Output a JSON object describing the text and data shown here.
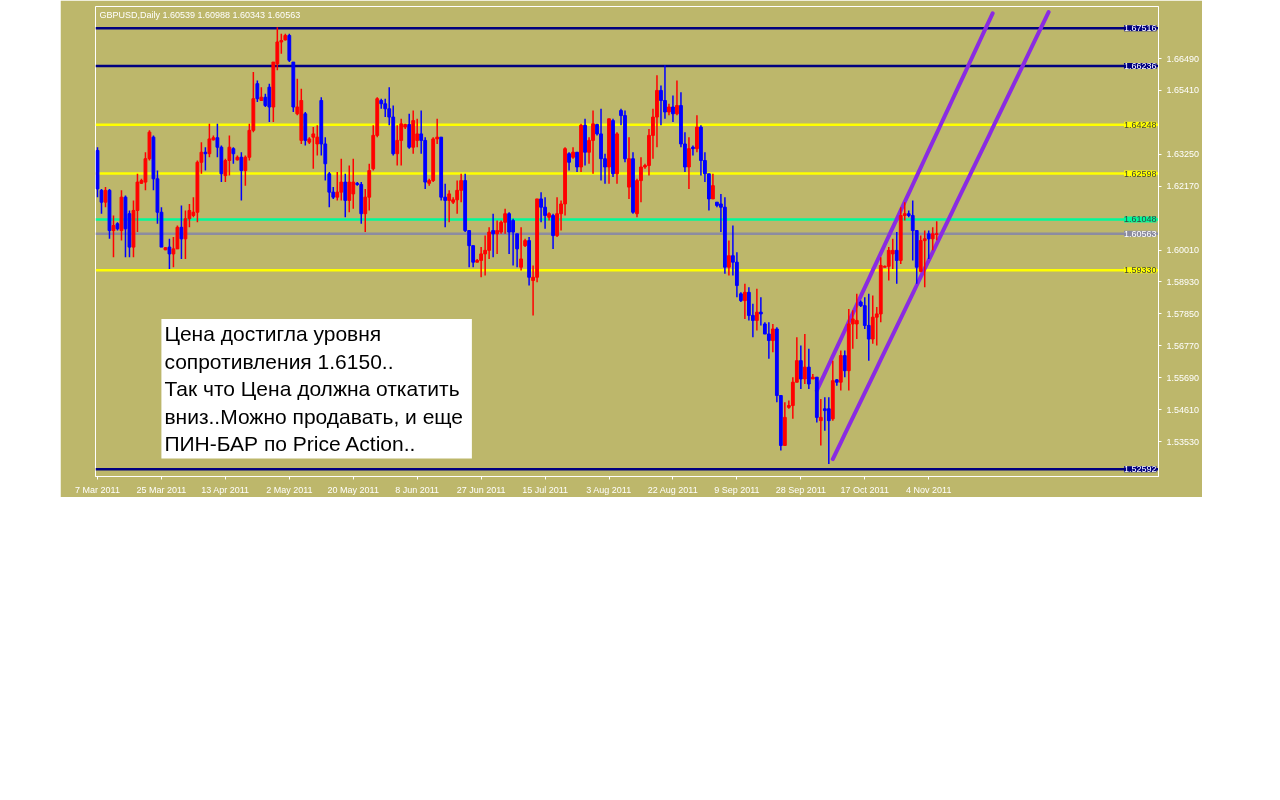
{
  "chart_data": {
    "type": "candlestick",
    "title": "GBPUSD,Daily  1.60539 1.60988 1.60343 1.60563",
    "categories": [
      "7 Mar 2011",
      null,
      null,
      null,
      null,
      null,
      null,
      null,
      null,
      null,
      null,
      null,
      null,
      null,
      null,
      null,
      "25 Mar 2011",
      null,
      null,
      null,
      null,
      null,
      null,
      null,
      null,
      null,
      null,
      null,
      null,
      null,
      null,
      null,
      "13 Apr 2011",
      null,
      null,
      null,
      null,
      null,
      null,
      null,
      null,
      null,
      null,
      null,
      null,
      null,
      null,
      null,
      "2 May 2011",
      null,
      null,
      null,
      null,
      null,
      null,
      null,
      null,
      null,
      null,
      null,
      null,
      null,
      null,
      null,
      "20 May 2011",
      null,
      null,
      null,
      null,
      null,
      null,
      null,
      null,
      null,
      null,
      null,
      null,
      null,
      null,
      null,
      "8 Jun 2011",
      null,
      null,
      null,
      null,
      null,
      null,
      null,
      null,
      null,
      null,
      null,
      null,
      null,
      null,
      null,
      "27 Jun 2011",
      null,
      null,
      null,
      null,
      null,
      null,
      null,
      null,
      null,
      null,
      null,
      null,
      null,
      null,
      null,
      "15 Jul 2011",
      null,
      null,
      null,
      null,
      null,
      null,
      null,
      null,
      null,
      null,
      null,
      null,
      null,
      null,
      null,
      "3 Aug 2011",
      null,
      null,
      null,
      null,
      null,
      null,
      null,
      null,
      null,
      null,
      null,
      null,
      null,
      null,
      null,
      "22 Aug 2011",
      null,
      null,
      null,
      null,
      null,
      null,
      null,
      null,
      null,
      null,
      null,
      null,
      null,
      null,
      null,
      "9 Sep 2011",
      null,
      null,
      null,
      null,
      null,
      null,
      null,
      null,
      null,
      null,
      null,
      null,
      null,
      null,
      null,
      "28 Sep 2011",
      null,
      null,
      null,
      null,
      null,
      null,
      null,
      null,
      null,
      null,
      null,
      null,
      null,
      null,
      null,
      "17 Oct 2011",
      null,
      null,
      null,
      null,
      null,
      null,
      null,
      null,
      null,
      null,
      null,
      null,
      null,
      null,
      null,
      "4 Nov 2011",
      null,
      null,
      null,
      null,
      null,
      null,
      null,
      null,
      null,
      null,
      null,
      null,
      null,
      null,
      null,
      null,
      null,
      null,
      null,
      null,
      null,
      null,
      null,
      null,
      null,
      null,
      null,
      null,
      null,
      null,
      null,
      null,
      null,
      null,
      null,
      null,
      null,
      null,
      null,
      null,
      null,
      null,
      null,
      null,
      null,
      null,
      null,
      null,
      null,
      null,
      null,
      null,
      null,
      null,
      null,
      null,
      null
    ],
    "ohlc": [
      [
        1.6338,
        1.6349,
        1.618,
        1.6208
      ],
      [
        1.6203,
        1.6208,
        1.6124,
        1.6163
      ],
      [
        1.6163,
        1.6214,
        1.6146,
        1.6203
      ],
      [
        1.6203,
        1.6208,
        1.6039,
        1.6067
      ],
      [
        1.6067,
        1.6118,
        1.5977,
        1.6084
      ],
      [
        1.609,
        1.6095,
        1.6067,
        1.6073
      ],
      [
        1.6067,
        1.6203,
        1.6033,
        1.618
      ],
      [
        1.618,
        1.6186,
        1.5977,
        1.6073
      ],
      [
        1.6124,
        1.6135,
        1.5977,
        1.6011
      ],
      [
        1.6011,
        1.6169,
        1.5977,
        1.6135
      ],
      [
        1.6135,
        1.6259,
        1.6062,
        1.6231
      ],
      [
        1.6227,
        1.6242,
        1.6225,
        1.6236
      ],
      [
        1.6231,
        1.6332,
        1.6203,
        1.631
      ],
      [
        1.631,
        1.6406,
        1.6304,
        1.64
      ],
      [
        1.6383,
        1.6389,
        1.6203,
        1.6242
      ],
      [
        1.6242,
        1.627,
        1.609,
        1.6129
      ],
      [
        1.6129,
        1.6146,
        1.6011,
        1.6011
      ],
      [
        1.6002,
        1.6011,
        1.6,
        1.6009
      ],
      [
        1.6011,
        1.6039,
        1.5937,
        1.5988
      ],
      [
        1.5988,
        1.6045,
        1.5943,
        1.6005
      ],
      [
        1.6005,
        1.6084,
        1.6005,
        1.6078
      ],
      [
        1.6078,
        1.6152,
        1.5971,
        1.6039
      ],
      [
        1.6039,
        1.6135,
        1.5971,
        1.6107
      ],
      [
        1.6107,
        1.6157,
        1.6078,
        1.6135
      ],
      [
        1.6118,
        1.618,
        1.6112,
        1.6129
      ],
      [
        1.6129,
        1.6304,
        1.6095,
        1.6298
      ],
      [
        1.6298,
        1.6366,
        1.6259,
        1.6332
      ],
      [
        1.6332,
        1.6349,
        1.627,
        1.6327
      ],
      [
        1.6327,
        1.6428,
        1.6315,
        1.6377
      ],
      [
        1.6374,
        1.6389,
        1.6372,
        1.6381
      ],
      [
        1.6381,
        1.6428,
        1.6315,
        1.6349
      ],
      [
        1.6349,
        1.6355,
        1.6231,
        1.6259
      ],
      [
        1.6253,
        1.631,
        1.6231,
        1.6304
      ],
      [
        1.6304,
        1.6389,
        1.6253,
        1.6349
      ],
      [
        1.6344,
        1.6349,
        1.6293,
        1.6327
      ],
      [
        1.6306,
        1.6321,
        1.6304,
        1.6315
      ],
      [
        1.6315,
        1.6332,
        1.6169,
        1.627
      ],
      [
        1.627,
        1.6321,
        1.6219,
        1.6315
      ],
      [
        1.6315,
        1.6428,
        1.6304,
        1.6406
      ],
      [
        1.6406,
        1.6603,
        1.64,
        1.6513
      ],
      [
        1.6564,
        1.6575,
        1.6502,
        1.6513
      ],
      [
        1.6507,
        1.6552,
        1.6507,
        1.6518
      ],
      [
        1.6518,
        1.653,
        1.6485,
        1.649
      ],
      [
        1.6552,
        1.6564,
        1.6434,
        1.6485
      ],
      [
        1.6485,
        1.6637,
        1.6434,
        1.6637
      ],
      [
        1.6631,
        1.6755,
        1.6609,
        1.6705
      ],
      [
        1.6705,
        1.6733,
        1.6665,
        1.671
      ],
      [
        1.6712,
        1.6733,
        1.671,
        1.6727
      ],
      [
        1.6727,
        1.6733,
        1.6637,
        1.6643
      ],
      [
        1.6637,
        1.6637,
        1.6468,
        1.6485
      ],
      [
        1.6462,
        1.6581,
        1.6457,
        1.6485
      ],
      [
        1.6372,
        1.6547,
        1.636,
        1.6507
      ],
      [
        1.6462,
        1.6468,
        1.6355,
        1.6372
      ],
      [
        1.6366,
        1.6383,
        1.636,
        1.6377
      ],
      [
        1.6383,
        1.6417,
        1.6276,
        1.6394
      ],
      [
        1.636,
        1.6423,
        1.6321,
        1.6383
      ],
      [
        1.6507,
        1.6518,
        1.6321,
        1.636
      ],
      [
        1.636,
        1.6383,
        1.6236,
        1.6293
      ],
      [
        1.6259,
        1.6265,
        1.6146,
        1.6197
      ],
      [
        1.6197,
        1.6214,
        1.6174,
        1.618
      ],
      [
        1.618,
        1.6265,
        1.6169,
        1.6197
      ],
      [
        1.6197,
        1.631,
        1.6169,
        1.6231
      ],
      [
        1.6231,
        1.6259,
        1.6112,
        1.6169
      ],
      [
        1.6169,
        1.6287,
        1.6129,
        1.6231
      ],
      [
        1.6191,
        1.631,
        1.6141,
        1.6231
      ],
      [
        1.6227,
        1.6231,
        1.6219,
        1.6223
      ],
      [
        1.6223,
        1.6231,
        1.609,
        1.6124
      ],
      [
        1.6124,
        1.6208,
        1.6062,
        1.618
      ],
      [
        1.618,
        1.6293,
        1.6135,
        1.627
      ],
      [
        1.6276,
        1.6423,
        1.627,
        1.6389
      ],
      [
        1.6389,
        1.6518,
        1.6383,
        1.6513
      ],
      [
        1.6507,
        1.6513,
        1.6479,
        1.6496
      ],
      [
        1.6496,
        1.6513,
        1.6451,
        1.6479
      ],
      [
        1.6479,
        1.6552,
        1.6423,
        1.6451
      ],
      [
        1.6451,
        1.649,
        1.6321,
        1.6327
      ],
      [
        1.6327,
        1.6423,
        1.6287,
        1.6372
      ],
      [
        1.6372,
        1.6445,
        1.6287,
        1.6428
      ],
      [
        1.6417,
        1.6428,
        1.6411,
        1.6426
      ],
      [
        1.6426,
        1.6462,
        1.6344,
        1.6349
      ],
      [
        1.6349,
        1.6473,
        1.6327,
        1.6439
      ],
      [
        1.6372,
        1.6445,
        1.6349,
        1.6394
      ],
      [
        1.6394,
        1.6473,
        1.6327,
        1.6372
      ],
      [
        1.6372,
        1.6383,
        1.6208,
        1.6231
      ],
      [
        1.6227,
        1.6242,
        1.6219,
        1.6236
      ],
      [
        1.6236,
        1.6383,
        1.6231,
        1.6377
      ],
      [
        1.6377,
        1.6445,
        1.636,
        1.6383
      ],
      [
        1.6383,
        1.6383,
        1.6169,
        1.618
      ],
      [
        1.618,
        1.6225,
        1.6078,
        1.6169
      ],
      [
        1.6169,
        1.6203,
        1.6095,
        1.6191
      ],
      [
        1.6163,
        1.618,
        1.6157,
        1.6171
      ],
      [
        1.6171,
        1.6236,
        1.6124,
        1.6203
      ],
      [
        1.6203,
        1.6259,
        1.6163,
        1.6236
      ],
      [
        1.6236,
        1.6259,
        1.6062,
        1.6067
      ],
      [
        1.6067,
        1.6067,
        1.5943,
        1.6016
      ],
      [
        1.6016,
        1.6016,
        1.5943,
        1.596
      ],
      [
        1.596,
        1.5971,
        1.596,
        1.5966
      ],
      [
        1.5966,
        1.6011,
        1.5909,
        1.5988
      ],
      [
        1.5988,
        1.605,
        1.5915,
        1.6
      ],
      [
        1.6,
        1.6078,
        1.5971,
        1.6062
      ],
      [
        1.6067,
        1.6124,
        1.5977,
        1.6056
      ],
      [
        1.6056,
        1.6101,
        1.5988,
        1.6067
      ],
      [
        1.6062,
        1.6101,
        1.6056,
        1.6095
      ],
      [
        1.6095,
        1.6141,
        1.6056,
        1.6124
      ],
      [
        1.6124,
        1.6129,
        1.5988,
        1.6062
      ],
      [
        1.6101,
        1.6107,
        1.5949,
        1.6062
      ],
      [
        1.6056,
        1.6056,
        1.5943,
        1.6005
      ],
      [
        1.5943,
        1.6078,
        1.5932,
        1.5971
      ],
      [
        1.6016,
        1.6039,
        1.6011,
        1.6033
      ],
      [
        1.6033,
        1.6045,
        1.5881,
        1.5909
      ],
      [
        1.5898,
        1.5949,
        1.578,
        1.5909
      ],
      [
        1.5909,
        1.6174,
        1.5892,
        1.6174
      ],
      [
        1.6174,
        1.6197,
        1.6095,
        1.6146
      ],
      [
        1.6146,
        1.618,
        1.6073,
        1.6118
      ],
      [
        1.6112,
        1.6129,
        1.6101,
        1.6124
      ],
      [
        1.6118,
        1.6124,
        1.6005,
        1.605
      ],
      [
        1.605,
        1.618,
        1.6045,
        1.6124
      ],
      [
        1.6124,
        1.6169,
        1.6067,
        1.6157
      ],
      [
        1.6157,
        1.6349,
        1.6118,
        1.6344
      ],
      [
        1.6327,
        1.6332,
        1.627,
        1.6298
      ],
      [
        1.6315,
        1.6349,
        1.631,
        1.6332
      ],
      [
        1.6332,
        1.6332,
        1.6265,
        1.6282
      ],
      [
        1.6282,
        1.6428,
        1.6265,
        1.6423
      ],
      [
        1.6423,
        1.6445,
        1.6287,
        1.6332
      ],
      [
        1.6332,
        1.6383,
        1.6293,
        1.6372
      ],
      [
        1.6372,
        1.6473,
        1.6259,
        1.6428
      ],
      [
        1.6426,
        1.6428,
        1.6389,
        1.6394
      ],
      [
        1.6394,
        1.6479,
        1.6236,
        1.631
      ],
      [
        1.631,
        1.6327,
        1.6225,
        1.6282
      ],
      [
        1.6282,
        1.6445,
        1.6225,
        1.6445
      ],
      [
        1.6439,
        1.6445,
        1.6248,
        1.6259
      ],
      [
        1.6259,
        1.64,
        1.6225,
        1.6394
      ],
      [
        1.6473,
        1.6479,
        1.6423,
        1.6456
      ],
      [
        1.6456,
        1.6473,
        1.6298,
        1.631
      ],
      [
        1.6214,
        1.6383,
        1.6174,
        1.631
      ],
      [
        1.631,
        1.6332,
        1.6124,
        1.6129
      ],
      [
        1.6124,
        1.6242,
        1.6112,
        1.6236
      ],
      [
        1.6236,
        1.6315,
        1.6163,
        1.6282
      ],
      [
        1.6282,
        1.6293,
        1.6276,
        1.6287
      ],
      [
        1.6287,
        1.6411,
        1.6253,
        1.6389
      ],
      [
        1.6389,
        1.6479,
        1.631,
        1.6451
      ],
      [
        1.6451,
        1.6592,
        1.6349,
        1.6541
      ],
      [
        1.6541,
        1.6558,
        1.6423,
        1.6507
      ],
      [
        1.6507,
        1.6626,
        1.6445,
        1.6468
      ],
      [
        1.6468,
        1.6496,
        1.6457,
        1.6485
      ],
      [
        1.6485,
        1.6524,
        1.6434,
        1.6462
      ],
      [
        1.6462,
        1.6575,
        1.6457,
        1.649
      ],
      [
        1.649,
        1.6535,
        1.6349,
        1.636
      ],
      [
        1.636,
        1.64,
        1.6265,
        1.6282
      ],
      [
        1.6282,
        1.6383,
        1.6208,
        1.6344
      ],
      [
        1.6349,
        1.6355,
        1.6321,
        1.6344
      ],
      [
        1.6344,
        1.6457,
        1.6332,
        1.6417
      ],
      [
        1.6417,
        1.6423,
        1.6253,
        1.6304
      ],
      [
        1.6304,
        1.6332,
        1.6231,
        1.6259
      ],
      [
        1.6259,
        1.6259,
        1.6135,
        1.6174
      ],
      [
        1.6174,
        1.6259,
        1.6174,
        1.6219
      ],
      [
        1.6163,
        1.6163,
        1.6146,
        1.6152
      ],
      [
        1.6157,
        1.6191,
        1.6062,
        1.6146
      ],
      [
        1.6146,
        1.618,
        1.5921,
        1.5943
      ],
      [
        1.5943,
        1.6033,
        1.5915,
        1.5982
      ],
      [
        1.5982,
        1.6084,
        1.5915,
        1.596
      ],
      [
        1.596,
        1.5994,
        1.5841,
        1.5881
      ],
      [
        1.5853,
        1.5858,
        1.5825,
        1.583
      ],
      [
        1.583,
        1.5887,
        1.5768,
        1.5858
      ],
      [
        1.5858,
        1.5875,
        1.5763,
        1.578
      ],
      [
        1.578,
        1.5819,
        1.5706,
        1.5763
      ],
      [
        1.5763,
        1.587,
        1.5729,
        1.5791
      ],
      [
        1.5791,
        1.5841,
        1.5746,
        1.5785
      ],
      [
        1.5751,
        1.5757,
        1.5717,
        1.5717
      ],
      [
        1.5717,
        1.5757,
        1.5633,
        1.5695
      ],
      [
        1.5695,
        1.5751,
        1.5655,
        1.5734
      ],
      [
        1.5734,
        1.574,
        1.5486,
        1.5509
      ],
      [
        1.5509,
        1.5509,
        1.5323,
        1.534
      ],
      [
        1.534,
        1.5486,
        1.534,
        1.5435
      ],
      [
        1.5469,
        1.5492,
        1.5464,
        1.5475
      ],
      [
        1.5475,
        1.5571,
        1.543,
        1.5554
      ],
      [
        1.5554,
        1.5706,
        1.5554,
        1.5627
      ],
      [
        1.5627,
        1.5678,
        1.5531,
        1.5565
      ],
      [
        1.5565,
        1.5717,
        1.5548,
        1.5605
      ],
      [
        1.5605,
        1.5667,
        1.5531,
        1.5548
      ],
      [
        1.5565,
        1.5582,
        1.5565,
        1.5571
      ],
      [
        1.5571,
        1.5571,
        1.5418,
        1.5435
      ],
      [
        1.5424,
        1.5497,
        1.534,
        1.5435
      ],
      [
        1.5464,
        1.5503,
        1.539,
        1.5458
      ],
      [
        1.5464,
        1.5503,
        1.5277,
        1.5424
      ],
      [
        1.543,
        1.5627,
        1.5424,
        1.5559
      ],
      [
        1.5562,
        1.5565,
        1.5542,
        1.5554
      ],
      [
        1.5554,
        1.5661,
        1.5526,
        1.5644
      ],
      [
        1.5644,
        1.5661,
        1.5571,
        1.5593
      ],
      [
        1.5593,
        1.5802,
        1.5526,
        1.5751
      ],
      [
        1.5751,
        1.5797,
        1.5667,
        1.5768
      ],
      [
        1.5751,
        1.5853,
        1.57,
        1.5763
      ],
      [
        1.5825,
        1.583,
        1.5808,
        1.5813
      ],
      [
        1.5813,
        1.5841,
        1.5734,
        1.5746
      ],
      [
        1.5746,
        1.5853,
        1.5627,
        1.57
      ],
      [
        1.57,
        1.5847,
        1.5684,
        1.5774
      ],
      [
        1.5774,
        1.5808,
        1.5678,
        1.5785
      ],
      [
        1.5785,
        1.5977,
        1.5757,
        1.5949
      ],
      [
        1.5943,
        1.5949,
        1.5943,
        1.5946
      ],
      [
        1.5946,
        1.6011,
        1.5898,
        1.6
      ],
      [
        1.5988,
        1.6039,
        1.5937,
        1.6
      ],
      [
        1.6,
        1.6062,
        1.5887,
        1.5966
      ],
      [
        1.5966,
        1.6146,
        1.5954,
        1.6118
      ],
      [
        1.6118,
        1.6163,
        1.6101,
        1.6124
      ],
      [
        1.6124,
        1.6135,
        1.6112,
        1.6118
      ],
      [
        1.6118,
        1.6169,
        1.5966,
        1.6067
      ],
      [
        1.6067,
        1.6067,
        1.5887,
        1.5943
      ],
      [
        1.5929,
        1.605,
        1.5926,
        1.6033
      ],
      [
        1.6033,
        1.6067,
        1.5875,
        1.6039
      ],
      [
        1.6056,
        1.6067,
        1.5971,
        1.6039
      ],
      [
        1.6039,
        1.6078,
        1.6,
        1.6056
      ],
      [
        1.60539,
        1.60988,
        1.60343,
        1.60563
      ],
      null,
      null,
      null,
      null,
      null,
      null,
      null,
      null,
      null,
      null,
      null,
      null,
      null,
      null,
      null,
      null,
      null,
      null,
      null,
      null,
      null,
      null,
      null,
      null,
      null,
      null,
      null,
      null,
      null,
      null,
      null,
      null,
      null,
      null,
      null,
      null,
      null,
      null,
      null,
      null,
      null,
      null,
      null,
      null,
      null,
      null,
      null,
      null,
      null,
      null,
      null,
      null,
      null,
      null,
      null
    ],
    "colors": [
      "#0000ff",
      "#0000ff",
      "#ff0000",
      "#0000ff",
      "#ff0000",
      "#0000ff",
      "#ff0000",
      "#0000ff",
      "#0000ff",
      "#ff0000",
      "#ff0000",
      "#ff0000",
      "#ff0000",
      "#ff0000",
      "#0000ff",
      "#0000ff",
      "#0000ff",
      "#ff0000",
      "#0000ff",
      "#ff0000",
      "#ff0000",
      "#0000ff",
      "#ff0000",
      "#ff0000",
      "#ff0000",
      "#ff0000",
      "#ff0000",
      "#0000ff",
      "#ff0000",
      "#ff0000",
      "#0000ff",
      "#0000ff",
      "#ff0000",
      "#ff0000",
      "#0000ff",
      "#ff0000",
      "#0000ff",
      "#ff0000",
      "#ff0000",
      "#ff0000",
      "#0000ff",
      "#ff0000",
      "#0000ff",
      "#0000ff",
      "#ff0000",
      "#ff0000",
      "#ff0000",
      "#ff0000",
      "#0000ff",
      "#0000ff",
      "#ff0000",
      "#ff0000",
      "#0000ff",
      "#ff0000",
      "#ff0000",
      "#ff0000",
      "#0000ff",
      "#0000ff",
      "#0000ff",
      "#0000ff",
      "#ff0000",
      "#ff0000",
      "#0000ff",
      "#ff0000",
      "#ff0000",
      "#0000ff",
      "#0000ff",
      "#ff0000",
      "#ff0000",
      "#ff0000",
      "#ff0000",
      "#0000ff",
      "#0000ff",
      "#0000ff",
      "#0000ff",
      "#ff0000",
      "#ff0000",
      "#ff0000",
      "#0000ff",
      "#ff0000",
      "#ff0000",
      "#0000ff",
      "#0000ff",
      "#ff0000",
      "#ff0000",
      "#ff0000",
      "#0000ff",
      "#0000ff",
      "#ff0000",
      "#ff0000",
      "#ff0000",
      "#ff0000",
      "#0000ff",
      "#0000ff",
      "#0000ff",
      "#ff0000",
      "#ff0000",
      "#ff0000",
      "#ff0000",
      "#0000ff",
      "#ff0000",
      "#ff0000",
      "#ff0000",
      "#0000ff",
      "#0000ff",
      "#0000ff",
      "#ff0000",
      "#ff0000",
      "#0000ff",
      "#ff0000",
      "#ff0000",
      "#0000ff",
      "#0000ff",
      "#ff0000",
      "#0000ff",
      "#ff0000",
      "#ff0000",
      "#ff0000",
      "#0000ff",
      "#ff0000",
      "#0000ff",
      "#ff0000",
      "#0000ff",
      "#ff0000",
      "#ff0000",
      "#0000ff",
      "#0000ff",
      "#0000ff",
      "#ff0000",
      "#0000ff",
      "#ff0000",
      "#0000ff",
      "#0000ff",
      "#ff0000",
      "#0000ff",
      "#ff0000",
      "#ff0000",
      "#ff0000",
      "#ff0000",
      "#ff0000",
      "#ff0000",
      "#0000ff",
      "#0000ff",
      "#ff0000",
      "#0000ff",
      "#ff0000",
      "#0000ff",
      "#0000ff",
      "#ff0000",
      "#0000ff",
      "#ff0000",
      "#0000ff",
      "#0000ff",
      "#0000ff",
      "#ff0000",
      "#0000ff",
      "#0000ff",
      "#0000ff",
      "#ff0000",
      "#0000ff",
      "#0000ff",
      "#0000ff",
      "#ff0000",
      "#0000ff",
      "#0000ff",
      "#ff0000",
      "#0000ff",
      "#0000ff",
      "#0000ff",
      "#ff0000",
      "#0000ff",
      "#0000ff",
      "#ff0000",
      "#ff0000",
      "#ff0000",
      "#ff0000",
      "#0000ff",
      "#ff0000",
      "#0000ff",
      "#ff0000",
      "#0000ff",
      "#ff0000",
      "#0000ff",
      "#0000ff",
      "#ff0000",
      "#0000ff",
      "#ff0000",
      "#0000ff",
      "#ff0000",
      "#ff0000",
      "#ff0000",
      "#0000ff",
      "#0000ff",
      "#0000ff",
      "#ff0000",
      "#ff0000",
      "#ff0000",
      "#ff0000",
      "#ff0000",
      "#ff0000",
      "#0000ff",
      "#ff0000",
      "#ff0000",
      "#0000ff",
      "#0000ff",
      "#0000ff",
      "#ff0000",
      "#ff0000",
      "#0000ff",
      "#ff0000",
      "#ff0000",
      null,
      null,
      null,
      null,
      null,
      null,
      null,
      null,
      null,
      null,
      null,
      null,
      null,
      null,
      null,
      null,
      null,
      null,
      null,
      null,
      null,
      null,
      null,
      null,
      null,
      null,
      null,
      null,
      null,
      null,
      null,
      null,
      null,
      null,
      null,
      null,
      null,
      null,
      null,
      null,
      null,
      null,
      null,
      null,
      null,
      null,
      null,
      null,
      null,
      null,
      null,
      null,
      null,
      null,
      null
    ],
    "series": [
      {
        "type": "line",
        "color": "#8a2be2",
        "values": [
          null,
          null,
          null,
          null,
          null,
          null,
          null,
          null,
          null,
          null,
          null,
          null,
          null,
          null,
          null,
          null,
          null,
          null,
          null,
          null,
          null,
          null,
          null,
          null,
          null,
          null,
          null,
          null,
          null,
          null,
          null,
          null,
          null,
          null,
          null,
          null,
          null,
          null,
          null,
          null,
          null,
          null,
          null,
          null,
          null,
          null,
          null,
          null,
          null,
          null,
          null,
          null,
          null,
          null,
          null,
          null,
          null,
          null,
          null,
          null,
          null,
          null,
          null,
          null,
          null,
          null,
          null,
          null,
          null,
          null,
          null,
          null,
          null,
          null,
          null,
          null,
          null,
          null,
          null,
          null,
          null,
          null,
          null,
          null,
          null,
          null,
          null,
          null,
          null,
          null,
          null,
          null,
          null,
          null,
          null,
          null,
          null,
          null,
          null,
          null,
          null,
          null,
          null,
          null,
          null,
          null,
          null,
          null,
          null,
          null,
          null,
          null,
          null,
          null,
          null,
          null,
          null,
          null,
          null,
          null,
          null,
          null,
          null,
          null,
          null,
          null,
          null,
          null,
          null,
          null,
          null,
          null,
          null,
          null,
          null,
          null,
          null,
          null,
          null,
          null,
          null,
          null,
          null,
          null,
          null,
          null,
          null,
          null,
          null,
          null,
          null,
          null,
          null,
          null,
          null,
          null,
          null,
          null,
          null,
          null,
          null,
          null,
          null,
          null,
          null,
          null,
          null,
          null,
          null,
          null,
          null,
          null,
          null,
          null,
          null,
          null,
          null,
          null,
          null,
          null,
          1.5526,
          1.5555,
          1.5584,
          1.5613,
          1.5642,
          1.5671,
          1.57,
          1.5729,
          1.5758,
          1.5787,
          1.5816,
          1.5845,
          1.5874,
          1.5903,
          1.5932,
          1.5961,
          1.599,
          1.6019,
          1.6048,
          1.6077,
          1.6106,
          1.6135,
          1.6164,
          1.6193,
          1.6222,
          1.6251,
          1.628,
          1.6309,
          1.6338,
          1.6367,
          1.6396,
          1.6425,
          1.6454,
          1.6483,
          1.6512,
          1.6541,
          1.657,
          1.6599,
          1.6628,
          1.6657,
          1.6686,
          1.6715,
          1.6744,
          1.6773,
          1.6802,
          null,
          null,
          null,
          null,
          null,
          null,
          null,
          null,
          null,
          null,
          null,
          null,
          null,
          null,
          null,
          null,
          null,
          null,
          null,
          null,
          null,
          null,
          null,
          null,
          null,
          null,
          null,
          null,
          null,
          null,
          null,
          null,
          null,
          null,
          null,
          null,
          null,
          null,
          null,
          null,
          null
        ]
      },
      {
        "type": "line",
        "color": "#8a2be2",
        "values": [
          null,
          null,
          null,
          null,
          null,
          null,
          null,
          null,
          null,
          null,
          null,
          null,
          null,
          null,
          null,
          null,
          null,
          null,
          null,
          null,
          null,
          null,
          null,
          null,
          null,
          null,
          null,
          null,
          null,
          null,
          null,
          null,
          null,
          null,
          null,
          null,
          null,
          null,
          null,
          null,
          null,
          null,
          null,
          null,
          null,
          null,
          null,
          null,
          null,
          null,
          null,
          null,
          null,
          null,
          null,
          null,
          null,
          null,
          null,
          null,
          null,
          null,
          null,
          null,
          null,
          null,
          null,
          null,
          null,
          null,
          null,
          null,
          null,
          null,
          null,
          null,
          null,
          null,
          null,
          null,
          null,
          null,
          null,
          null,
          null,
          null,
          null,
          null,
          null,
          null,
          null,
          null,
          null,
          null,
          null,
          null,
          null,
          null,
          null,
          null,
          null,
          null,
          null,
          null,
          null,
          null,
          null,
          null,
          null,
          null,
          null,
          null,
          null,
          null,
          null,
          null,
          null,
          null,
          null,
          null,
          null,
          null,
          null,
          null,
          null,
          null,
          null,
          null,
          null,
          null,
          null,
          null,
          null,
          null,
          null,
          null,
          null,
          null,
          null,
          null,
          null,
          null,
          null,
          null,
          null,
          null,
          null,
          null,
          null,
          null,
          null,
          null,
          null,
          null,
          null,
          null,
          null,
          null,
          null,
          null,
          null,
          null,
          null,
          null,
          null,
          null,
          null,
          null,
          null,
          null,
          null,
          null,
          null,
          null,
          null,
          null,
          null,
          null,
          null,
          null,
          null,
          null,
          null,
          null,
          1.5294,
          1.5322,
          1.535,
          1.5378,
          1.5406,
          1.5434,
          1.5462,
          1.549,
          1.5518,
          1.5546,
          1.5574,
          1.5602,
          1.563,
          1.5658,
          1.5686,
          1.5714,
          1.5742,
          1.577,
          1.5798,
          1.5826,
          1.5854,
          1.5882,
          1.591,
          1.5938,
          1.5966,
          1.5994,
          1.6022,
          1.605,
          1.6078,
          1.6106,
          1.6134,
          1.6162,
          1.619,
          1.6218,
          1.6246,
          1.6274,
          1.6302,
          1.633,
          1.6358,
          1.6386,
          1.6414,
          1.6442,
          1.647,
          1.6498,
          1.6526,
          1.6554,
          1.6582,
          1.661,
          1.6638,
          1.6666,
          1.6694,
          1.6722,
          1.675,
          1.6778,
          1.6806,
          null,
          null,
          null,
          null,
          null,
          null,
          null,
          null,
          null,
          null,
          null,
          null,
          null,
          null,
          null,
          null,
          null,
          null,
          null,
          null,
          null,
          null,
          null,
          null,
          null,
          null,
          null
        ]
      }
    ],
    "ref_lines": [
      {
        "axis": "y",
        "value": 1.67516,
        "label": "1.67516",
        "color": "#000080"
      },
      {
        "axis": "y",
        "value": 1.66236,
        "label": "1.66236",
        "color": "#000080"
      },
      {
        "axis": "y",
        "value": 1.64248,
        "label": "1.64248",
        "color": "#ffff00"
      },
      {
        "axis": "y",
        "value": 1.62598,
        "label": "1.62598",
        "color": "#ffff00"
      },
      {
        "axis": "y",
        "value": 1.61048,
        "label": "1.61048",
        "color": "#00fa9a"
      },
      {
        "axis": "y",
        "value": 1.60563,
        "label": "1.60563",
        "color": "#8c8ca0"
      },
      {
        "axis": "y",
        "value": 1.5933,
        "label": "1.59330",
        "color": "#ffff00"
      },
      {
        "axis": "y",
        "value": 1.52592,
        "label": "1.52592",
        "color": "#000080"
      }
    ],
    "ylim": [
      1.5235,
      1.6825
    ],
    "yticks": [
      {
        "value": 1.6649,
        "label": "1.66490"
      },
      {
        "value": 1.6541,
        "label": "1.65410"
      },
      {
        "value": 1.6325,
        "label": "1.63250"
      },
      {
        "value": 1.6217,
        "label": "1.62170"
      },
      {
        "value": 1.6001,
        "label": "1.60010"
      },
      {
        "value": 1.5893,
        "label": "1.58930"
      },
      {
        "value": 1.5785,
        "label": "1.57850"
      },
      {
        "value": 1.5677,
        "label": "1.56770"
      },
      {
        "value": 1.5569,
        "label": "1.55690"
      },
      {
        "value": 1.5461,
        "label": "1.54610"
      },
      {
        "value": 1.5353,
        "label": "1.53530"
      }
    ],
    "annotations": [
      "Цена достигла уровня\nсопротивления 1.6150..\nТак что Цена должна откатить\nвниз..Можно продавать, и  еще\nПИН-БАР по  Price Action.."
    ]
  }
}
